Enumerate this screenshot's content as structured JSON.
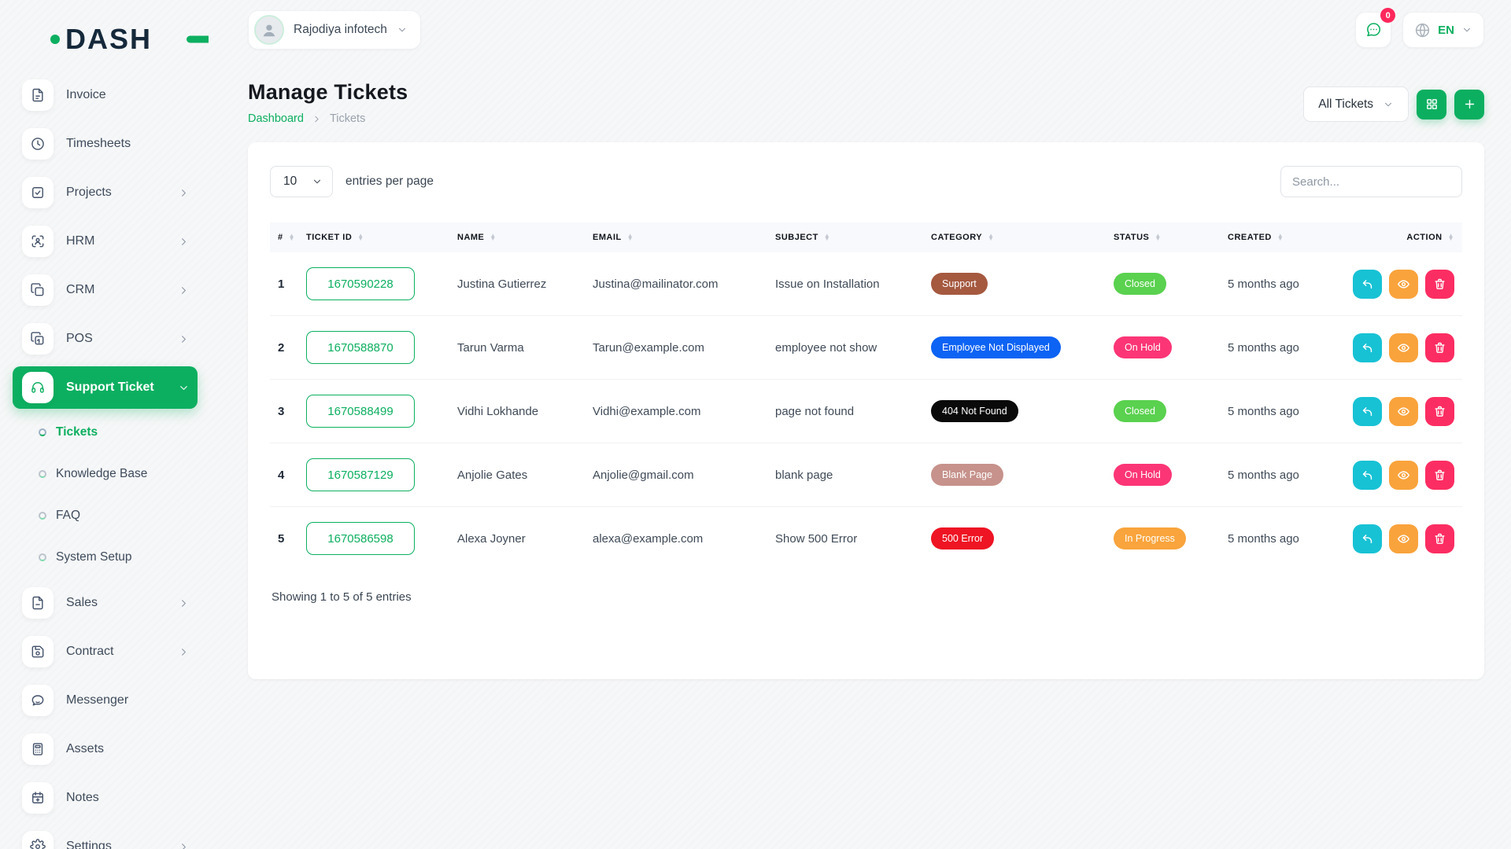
{
  "colors": {
    "primary": "#0caf60",
    "logo-dark": "#15293b",
    "action-reply": "#17c2d4",
    "action-view": "#f9a33c",
    "action-delete": "#fc2d62",
    "badge-count": "#fc275b"
  },
  "brand": {
    "logo_text": "DASH"
  },
  "topbar": {
    "company_name": "Rajodiya infotech",
    "messages_badge": "0",
    "language_code": "EN"
  },
  "sidebar": {
    "items": [
      {
        "label": "Invoice",
        "icon": "invoice-icon",
        "chevron": false
      },
      {
        "label": "Timesheets",
        "icon": "clock-icon",
        "chevron": false
      },
      {
        "label": "Projects",
        "icon": "projects-icon",
        "chevron": true
      },
      {
        "label": "HRM",
        "icon": "hrm-icon",
        "chevron": true
      },
      {
        "label": "CRM",
        "icon": "crm-icon",
        "chevron": true
      },
      {
        "label": "POS",
        "icon": "pos-icon",
        "chevron": true
      },
      {
        "label": "Support Ticket",
        "icon": "support-ticket-icon",
        "chevron": true,
        "active": true,
        "expanded": true,
        "children": [
          {
            "label": "Tickets",
            "active": true
          },
          {
            "label": "Knowledge Base",
            "active": false
          },
          {
            "label": "FAQ",
            "active": false
          },
          {
            "label": "System Setup",
            "active": false
          }
        ]
      },
      {
        "label": "Sales",
        "icon": "sales-icon",
        "chevron": true
      },
      {
        "label": "Contract",
        "icon": "contract-icon",
        "chevron": true
      },
      {
        "label": "Messenger",
        "icon": "messenger-icon",
        "chevron": false
      },
      {
        "label": "Assets",
        "icon": "assets-icon",
        "chevron": false
      },
      {
        "label": "Notes",
        "icon": "notes-icon",
        "chevron": false
      },
      {
        "label": "Settings",
        "icon": "settings-icon",
        "chevron": true
      }
    ]
  },
  "page": {
    "title": "Manage Tickets",
    "breadcrumb_root": "Dashboard",
    "breadcrumb_current": "Tickets",
    "filter_button_label": "All Tickets"
  },
  "table": {
    "entries_value": "10",
    "entries_label": "entries per page",
    "search_placeholder": "Search...",
    "columns": [
      "#",
      "TICKET ID",
      "NAME",
      "EMAIL",
      "SUBJECT",
      "CATEGORY",
      "STATUS",
      "CREATED",
      "ACTION"
    ],
    "rows": [
      {
        "num": "1",
        "ticket_id": "1670590228",
        "name": "Justina Gutierrez",
        "email": "Justina@mailinator.com",
        "subject": "Issue on Installation",
        "category": {
          "label": "Support",
          "color": "#a5593f"
        },
        "status": {
          "label": "Closed",
          "color": "#5ad14f"
        },
        "created": "5 months ago"
      },
      {
        "num": "2",
        "ticket_id": "1670588870",
        "name": "Tarun Varma",
        "email": "Tarun@example.com",
        "subject": "employee not show",
        "category": {
          "label": "Employee Not Displayed",
          "color": "#0d63f3"
        },
        "status": {
          "label": "On Hold",
          "color": "#fc3576"
        },
        "created": "5 months ago"
      },
      {
        "num": "3",
        "ticket_id": "1670588499",
        "name": "Vidhi Lokhande",
        "email": "Vidhi@example.com",
        "subject": "page not found",
        "category": {
          "label": "404 Not Found",
          "color": "#0a0a0a"
        },
        "status": {
          "label": "Closed",
          "color": "#5ad14f"
        },
        "created": "5 months ago"
      },
      {
        "num": "4",
        "ticket_id": "1670587129",
        "name": "Anjolie Gates",
        "email": "Anjolie@gmail.com",
        "subject": "blank page",
        "category": {
          "label": "Blank Page",
          "color": "#c6928b"
        },
        "status": {
          "label": "On Hold",
          "color": "#fc3576"
        },
        "created": "5 months ago"
      },
      {
        "num": "5",
        "ticket_id": "1670586598",
        "name": "Alexa Joyner",
        "email": "alexa@example.com",
        "subject": "Show 500 Error",
        "category": {
          "label": "500 Error",
          "color": "#ee1423"
        },
        "status": {
          "label": "In Progress",
          "color": "#f9a43c"
        },
        "created": "5 months ago"
      }
    ],
    "footer_text": "Showing 1 to 5 of 5 entries"
  }
}
